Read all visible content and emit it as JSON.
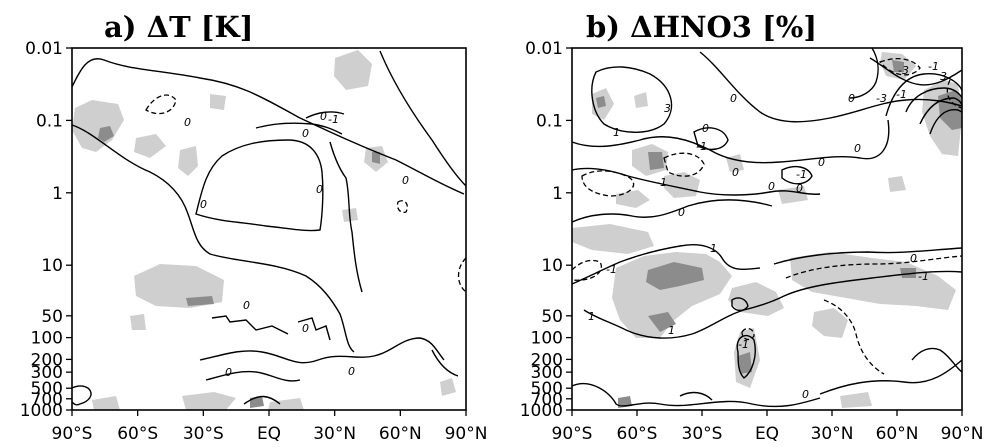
{
  "chart_data": [
    {
      "type": "heatmap",
      "title": "a) ΔT [K]",
      "x_tick_labels": [
        "90°S",
        "60°S",
        "30°S",
        "EQ",
        "30°N",
        "60°N",
        "90°N"
      ],
      "x_ticks_deg": [
        -90,
        -60,
        -30,
        0,
        30,
        60,
        90
      ],
      "y_tick_labels": [
        "0.01",
        "0.1",
        "1",
        "10",
        "50",
        "100",
        "200",
        "300",
        "500",
        "700",
        "1000"
      ],
      "y_ticks": [
        0.01,
        0.1,
        1,
        10,
        50,
        100,
        200,
        300,
        500,
        700,
        1000
      ],
      "y_scale": "log",
      "y_inverted": true,
      "xlim": [
        -90,
        90
      ],
      "ylim": [
        0.01,
        1000
      ],
      "contour_labels": [
        "0",
        "0",
        "0",
        "0",
        "0",
        "0",
        "-1",
        "0",
        "0",
        "0",
        "0"
      ],
      "shading": "light grey and dark grey significance shading"
    },
    {
      "type": "heatmap",
      "title": "b) ΔHNO3 [%]",
      "x_tick_labels": [
        "90°S",
        "60°S",
        "30°S",
        "EQ",
        "30°N",
        "60°N",
        "90°N"
      ],
      "x_ticks_deg": [
        -90,
        -60,
        -30,
        0,
        30,
        60,
        90
      ],
      "y_tick_labels": [
        "0.01",
        "0.1",
        "1",
        "10",
        "50",
        "100",
        "200",
        "300",
        "500",
        "700",
        "1000"
      ],
      "y_ticks": [
        0.01,
        0.1,
        1,
        10,
        50,
        100,
        200,
        300,
        500,
        700,
        1000
      ],
      "y_scale": "log",
      "y_inverted": true,
      "xlim": [
        -90,
        90
      ],
      "ylim": [
        0.01,
        1000
      ],
      "contour_labels": [
        "-3",
        "-1",
        "3",
        "-3",
        "-1",
        "0",
        "3",
        "0",
        "0",
        "1",
        "-1",
        "0",
        "0",
        "-1",
        "0",
        "0",
        "0",
        "0",
        "-1",
        "-1",
        "1",
        "1",
        "1",
        "-1",
        "0",
        "-1",
        "0"
      ],
      "shading": "light grey and dark grey significance shading"
    }
  ]
}
